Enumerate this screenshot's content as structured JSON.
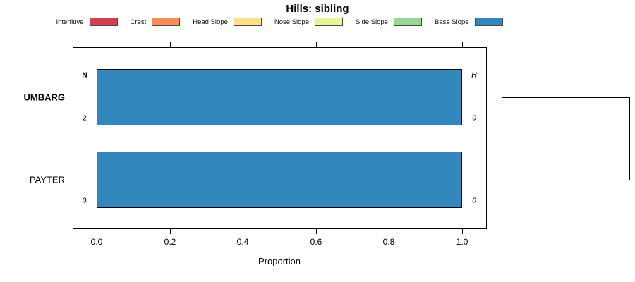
{
  "title": "Hills: sibling",
  "legend": {
    "items": [
      {
        "label": "Interfluve",
        "color": "#D53E4F"
      },
      {
        "label": "Crest",
        "color": "#FC8D59"
      },
      {
        "label": "Head Slope",
        "color": "#FEE08B"
      },
      {
        "label": "Nose Slope",
        "color": "#E6F598"
      },
      {
        "label": "Side Slope",
        "color": "#99D594"
      },
      {
        "label": "Base Slope",
        "color": "#3288BD"
      }
    ]
  },
  "chart_data": {
    "type": "bar",
    "orientation": "horizontal",
    "title": "Hills: sibling",
    "xlabel": "Proportion",
    "xlim": [
      0,
      1
    ],
    "x_ticks": [
      "0.0",
      "0.2",
      "0.4",
      "0.6",
      "0.8",
      "1.0"
    ],
    "x_tick_values": [
      0,
      0.2,
      0.4,
      0.6,
      0.8,
      1.0
    ],
    "grid": false,
    "legend_position": "top",
    "categories": [
      "UMBARG",
      "PAYTER"
    ],
    "bold_category": "UMBARG",
    "series": [
      {
        "name": "Base Slope",
        "color": "#3288BD",
        "values": [
          1.0,
          1.0
        ]
      }
    ],
    "annotations": {
      "left_header": "N",
      "right_header": "H",
      "rows": [
        {
          "left": "2",
          "right": "0"
        },
        {
          "left": "3",
          "right": "0"
        }
      ]
    },
    "right_dendrogram": {
      "joined_rows": [
        "UMBARG",
        "PAYTER"
      ]
    }
  },
  "colors": {
    "bar_fill": "#3288BD",
    "bar_border": "#000000",
    "axis": "#000000",
    "background": "#FFFFFF"
  }
}
